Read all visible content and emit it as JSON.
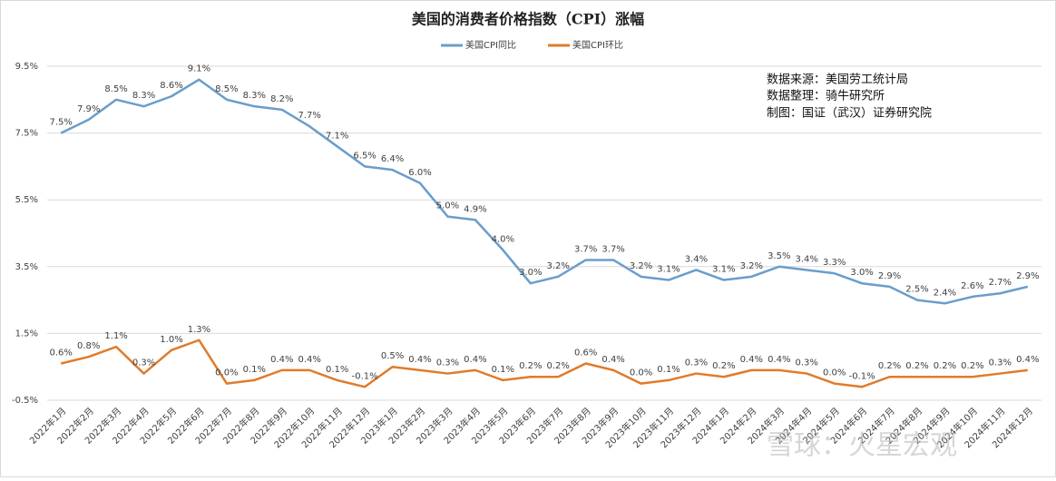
{
  "chart_data": {
    "type": "line",
    "title": "美国的消费者价格指数（CPI）涨幅",
    "categories": [
      "2022年1月",
      "2022年2月",
      "2022年3月",
      "2022年4月",
      "2022年5月",
      "2022年6月",
      "2022年7月",
      "2022年8月",
      "2022年9月",
      "2022年10月",
      "2022年11月",
      "2022年12月",
      "2023年1月",
      "2023年2月",
      "2023年3月",
      "2023年4月",
      "2023年5月",
      "2023年6月",
      "2023年7月",
      "2023年8月",
      "2023年9月",
      "2023年10月",
      "2023年11月",
      "2023年12月",
      "2024年1月",
      "2024年2月",
      "2024年3月",
      "2024年4月",
      "2024年5月",
      "2024年6月",
      "2024年7月",
      "2024年8月",
      "2024年9月",
      "2024年10月",
      "2024年11月",
      "2024年12月"
    ],
    "series": [
      {
        "name": "美国CPI同比",
        "color": "#6a9dcb",
        "values": [
          7.5,
          7.9,
          8.5,
          8.3,
          8.6,
          9.1,
          8.5,
          8.3,
          8.2,
          7.7,
          7.1,
          6.5,
          6.4,
          6.0,
          5.0,
          4.9,
          4.0,
          3.0,
          3.2,
          3.7,
          3.7,
          3.2,
          3.1,
          3.4,
          3.1,
          3.2,
          3.5,
          3.4,
          3.3,
          3.0,
          2.9,
          2.5,
          2.4,
          2.6,
          2.7,
          2.9
        ],
        "value_labels": [
          "7.5%",
          "7.9%",
          "8.5%",
          "8.3%",
          "8.6%",
          "9.1%",
          "8.5%",
          "8.3%",
          "8.2%",
          "7.7%",
          "7.1%",
          "6.5%",
          "6.4%",
          "6.0%",
          "5.0%",
          "4.9%",
          "4.0%",
          "3.0%",
          "3.2%",
          "3.7%",
          "3.7%",
          "3.2%",
          "3.1%",
          "3.4%",
          "3.1%",
          "3.2%",
          "3.5%",
          "3.4%",
          "3.3%",
          "3.0%",
          "2.9%",
          "2.5%",
          "2.4%",
          "2.6%",
          "2.7%",
          "2.9%"
        ]
      },
      {
        "name": "美国CPI环比",
        "color": "#e07b2a",
        "values": [
          0.6,
          0.8,
          1.1,
          0.3,
          1.0,
          1.3,
          0.0,
          0.1,
          0.4,
          0.4,
          0.1,
          -0.1,
          0.5,
          0.4,
          0.3,
          0.4,
          0.1,
          0.2,
          0.2,
          0.6,
          0.4,
          0.0,
          0.1,
          0.3,
          0.2,
          0.4,
          0.4,
          0.3,
          0.0,
          -0.1,
          0.2,
          0.2,
          0.2,
          0.2,
          0.3,
          0.4
        ],
        "value_labels": [
          "0.6%",
          "0.8%",
          "1.1%",
          "0.3%",
          "1.0%",
          "1.3%",
          "0.0%",
          "0.1%",
          "0.4%",
          "0.4%",
          "0.1%",
          "-0.1%",
          "0.5%",
          "0.4%",
          "0.3%",
          "0.4%",
          "0.1%",
          "0.2%",
          "0.2%",
          "0.6%",
          "0.4%",
          "0.0%",
          "0.1%",
          "0.3%",
          "0.2%",
          "0.4%",
          "0.4%",
          "0.3%",
          "0.0%",
          "-0.1%",
          "0.2%",
          "0.2%",
          "0.2%",
          "0.2%",
          "0.3%",
          "0.4%"
        ]
      }
    ],
    "ylim": [
      -0.5,
      9.5
    ],
    "yticks": [
      {
        "value": -0.5,
        "label": "-0.5%"
      },
      {
        "value": 1.5,
        "label": "1.5%"
      },
      {
        "value": 3.5,
        "label": "3.5%"
      },
      {
        "value": 5.5,
        "label": "5.5%"
      },
      {
        "value": 7.5,
        "label": "7.5%"
      },
      {
        "value": 9.5,
        "label": "9.5%"
      }
    ],
    "grid": true,
    "annotations": [
      "数据来源：美国劳工统计局",
      "数据整理：骑牛研究所",
      "制图：国证（武汉）证券研究院"
    ],
    "watermark": "雪球：火星宏观"
  }
}
